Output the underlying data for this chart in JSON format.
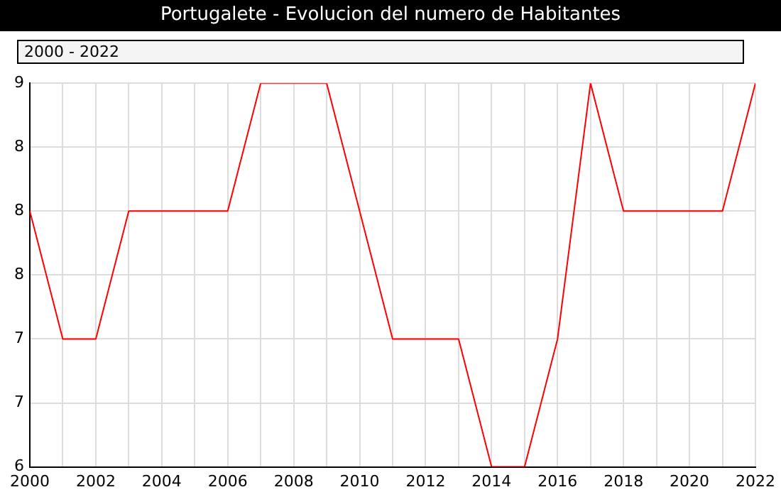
{
  "chart_data": {
    "type": "line",
    "title": "Portugalete - Evolucion del numero de Habitantes",
    "annotations": [
      "2000 - 2022"
    ],
    "x": [
      2000,
      2001,
      2002,
      2003,
      2004,
      2005,
      2006,
      2007,
      2008,
      2009,
      2010,
      2011,
      2012,
      2013,
      2014,
      2015,
      2016,
      2017,
      2018,
      2019,
      2020,
      2021,
      2022
    ],
    "series": [
      {
        "color": "#ff0000",
        "values": [
          8,
          7,
          7,
          8,
          8,
          8,
          8,
          9,
          9,
          9,
          8,
          7,
          7,
          7,
          6,
          6,
          7,
          9,
          8,
          8,
          8,
          8,
          9
        ]
      }
    ],
    "xlim": [
      2000,
      2022
    ],
    "xticks": [
      2000,
      {
        "value": 2001,
        "label": null
      },
      2002,
      {
        "value": 2003,
        "label": null
      },
      2004,
      {
        "value": 2005,
        "label": null
      },
      2006,
      {
        "value": 2007,
        "label": null
      },
      2008,
      {
        "value": 2009,
        "label": null
      },
      2010,
      {
        "value": 2011,
        "label": null
      },
      2012,
      {
        "value": 2013,
        "label": null
      },
      2014,
      {
        "value": 2015,
        "label": null
      },
      2016,
      {
        "value": 2017,
        "label": null
      },
      2018,
      {
        "value": 2019,
        "label": null
      },
      2020,
      {
        "value": 2021,
        "label": null
      },
      2022
    ],
    "ylim": [
      6,
      9
    ],
    "yticks": [
      6,
      {
        "value": 6.5,
        "label": "7"
      },
      7,
      {
        "value": 7.5,
        "label": "8"
      },
      8,
      {
        "value": 8.5,
        "label": "8"
      },
      9
    ],
    "grid": true,
    "legend": false,
    "marker": "none",
    "line_style": "solid"
  }
}
